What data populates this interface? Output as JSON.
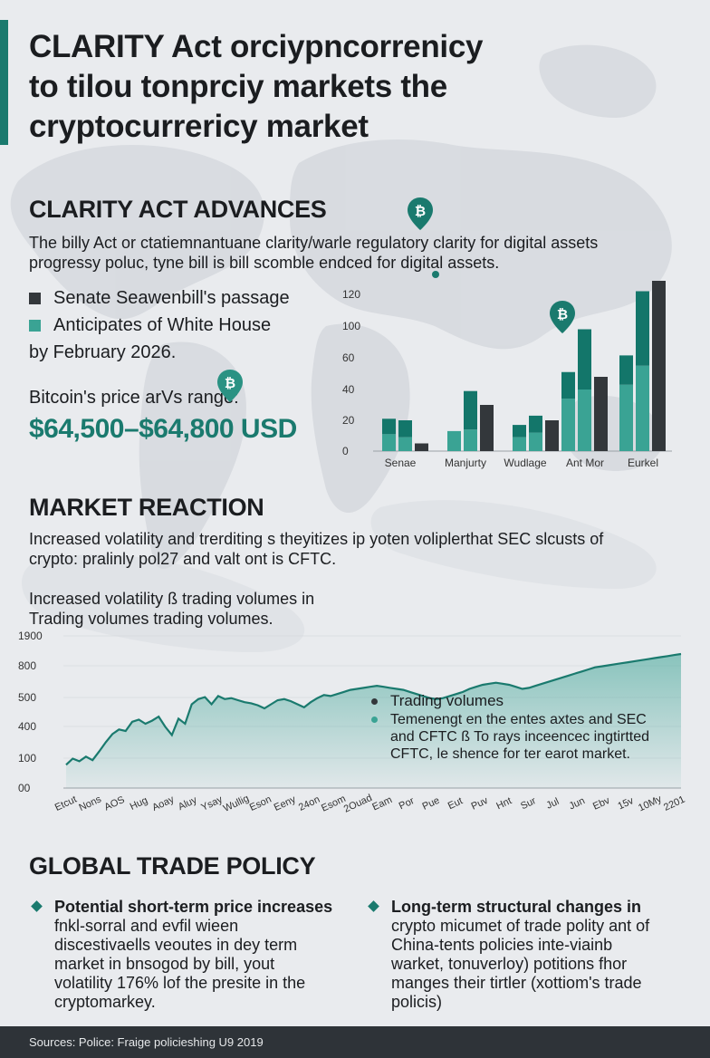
{
  "header": {
    "title_lines": [
      "CLARITY Act orciypncorrenicy",
      "to  tilou tonprciy markets the",
      "cryptocurrericy market"
    ]
  },
  "section1": {
    "heading": "CLARITY ACT ADVANCES",
    "body_lines": [
      "The billy Act or ctatiemnantuane clarity/warle regulatory clarity for digital assets",
      "progressy poluc, tyne bill is bill scomble endced for digital assets."
    ],
    "legend": [
      {
        "label": "Senate Seawenbill's passage",
        "color": "#33373b"
      },
      {
        "label": "Anticipates of White House",
        "color": "#3aa394"
      }
    ],
    "legend_note": "by February 2026.",
    "price_label": "Bitcoin's price arVs range:",
    "price_value": "$64,500–$64,800 USD"
  },
  "chart_data": [
    {
      "type": "bar",
      "title": "",
      "xlabel": "",
      "ylabel": "",
      "ylim": [
        0,
        130
      ],
      "yticks": [
        "0",
        "20",
        "40",
        "60",
        "100",
        "120"
      ],
      "ytick_values": [
        0,
        20,
        40,
        60,
        100,
        120
      ],
      "categories": [
        "Senae",
        "Manjurty",
        "Wudlage",
        "Ant Mor",
        "Eurkel"
      ],
      "bars": [
        {
          "group": 0,
          "light": 11,
          "dark": 10,
          "color": "teal"
        },
        {
          "group": 0,
          "light": 9,
          "dark": 11,
          "color": "teal"
        },
        {
          "group": 0,
          "light": 0,
          "dark": 5,
          "color": "dark"
        },
        {
          "group": 1,
          "light": 13,
          "dark": 0,
          "color": "teal"
        },
        {
          "group": 1,
          "light": 14,
          "dark": 25,
          "color": "teal"
        },
        {
          "group": 1,
          "light": 0,
          "dark": 30,
          "color": "dark"
        },
        {
          "group": 2,
          "light": 9,
          "dark": 8,
          "color": "teal"
        },
        {
          "group": 2,
          "light": 12,
          "dark": 11,
          "color": "teal"
        },
        {
          "group": 2,
          "light": 0,
          "dark": 20,
          "color": "dark"
        },
        {
          "group": 3,
          "light": 34,
          "dark": 17,
          "color": "teal"
        },
        {
          "group": 3,
          "light": 40,
          "dark": 56,
          "color": "teal"
        },
        {
          "group": 3,
          "light": 0,
          "dark": 48,
          "color": "dark"
        },
        {
          "group": 4,
          "light": 43,
          "dark": 20,
          "color": "teal"
        },
        {
          "group": 4,
          "light": 55,
          "dark": 67,
          "color": "teal"
        },
        {
          "group": 4,
          "light": 0,
          "dark": 130,
          "color": "dark"
        }
      ]
    },
    {
      "type": "area",
      "title": "Increased volatility ß trading volumes in",
      "subtitle": "Trading volumes trading volumes.",
      "yticks": [
        "00",
        "100",
        "400",
        "500",
        "800",
        "1900"
      ],
      "ytick_values": [
        0,
        100,
        400,
        500,
        800,
        1900
      ],
      "xticks": [
        "Etcut",
        "Nons",
        "AOS",
        "Hug",
        "Aoay",
        "Aluy",
        "Ysay",
        "Wullig",
        "Eson",
        "Eeny",
        "24on",
        "Esom",
        "2Ouad",
        "Eam",
        "Por",
        "Pue",
        "Eut",
        "Puv",
        "Hnt",
        "Sur",
        "Jul",
        "Jun",
        "Ebv",
        "15v",
        "10My",
        "2201"
      ],
      "series": [
        {
          "name": "Trading volumes",
          "values": [
            50,
            110,
            85,
            130,
            95,
            180,
            270,
            350,
            395,
            380,
            470,
            490,
            450,
            480,
            520,
            420,
            340,
            500,
            450,
            640,
            690,
            710,
            640,
            720,
            690,
            700,
            680,
            660,
            650,
            630,
            600,
            640,
            680,
            690,
            670,
            640,
            610,
            660,
            700,
            730,
            720,
            740,
            760,
            780,
            790,
            800,
            810,
            820,
            810,
            800,
            790,
            780,
            760,
            740,
            720,
            700,
            690,
            700,
            720,
            740,
            760,
            790,
            810,
            830,
            840,
            850,
            840,
            830,
            810,
            790,
            800,
            820,
            840,
            860,
            880,
            900,
            920,
            940,
            960,
            980,
            1000,
            1010,
            1020,
            1030,
            1040,
            1050,
            1060,
            1070,
            1080,
            1090,
            1100,
            1110,
            1120,
            1130
          ]
        }
      ],
      "legend_title": "Trading volumes",
      "legend_body_lines": [
        "Temenengt en the entes axtes and SEC",
        "and CFTC ß To rays inceencec ingtirtted",
        "CFTC, le shence for ter earot market."
      ]
    }
  ],
  "section2": {
    "heading": "MARKET REACTION",
    "body_lines": [
      "Increased volatility and trerditing s theyitizes ip yoten voliplerthat SEC slcusts of",
      "crypto: pralinly pol27 and valt ont is CFTC."
    ]
  },
  "section3": {
    "heading": "GLOBAL TRADE POLICY",
    "left": {
      "head": "Potential short-term price increases",
      "body_lines": [
        "fnkl-sorral and evfil wieen",
        "discestivaells veoutes in dey term",
        "market in bnsogod by bill, yout",
        "volatility 176% lof the presite in the",
        "cryptomarkey."
      ]
    },
    "right": {
      "head": "Long-term structural changes in",
      "body_lines": [
        "crypto micumet of trade polity ant of",
        "China-tents policies inte-viainb",
        "warket, tonuverloy) potitions fhor",
        "manges their tirtler (xottiom's trade",
        "policis)"
      ]
    }
  },
  "footer": {
    "text": "Sources: Police: Fraige policieshing U9 2019"
  },
  "colors": {
    "accent": "#1a7a6e",
    "teal_light": "#3aa394",
    "teal_dark": "#13766a",
    "bar_dark": "#33373b",
    "footer_bg": "#2e3338"
  },
  "icons": [
    "bitcoin-pin-icon",
    "bitcoin-pin-icon",
    "bitcoin-pin-icon",
    "bitcoin-pin-icon",
    "diamond-bullet-icon"
  ]
}
